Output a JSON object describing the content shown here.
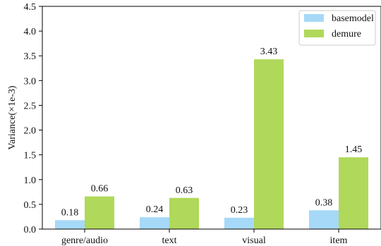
{
  "chart_data": {
    "type": "bar",
    "categories": [
      "genre/audio",
      "text",
      "visual",
      "item"
    ],
    "series": [
      {
        "name": "basemodel",
        "values": [
          0.18,
          0.24,
          0.23,
          0.38
        ],
        "labels": [
          "0.18",
          "0.24",
          "0.23",
          "0.38"
        ],
        "color": "#a6d9f7"
      },
      {
        "name": "demure",
        "values": [
          0.66,
          0.63,
          3.43,
          1.45
        ],
        "labels": [
          "0.66",
          "0.63",
          "3.43",
          "1.45"
        ],
        "color": "#b0d85a"
      }
    ],
    "title": "",
    "xlabel": "",
    "ylabel": "Variance(×1e-3)",
    "ylim": [
      0,
      4.5
    ],
    "yticks": [
      "0.0",
      "0.5",
      "1.0",
      "1.5",
      "2.0",
      "2.5",
      "3.0",
      "3.5",
      "4.0",
      "4.5"
    ],
    "grid": false,
    "legend_position": "top-right"
  }
}
